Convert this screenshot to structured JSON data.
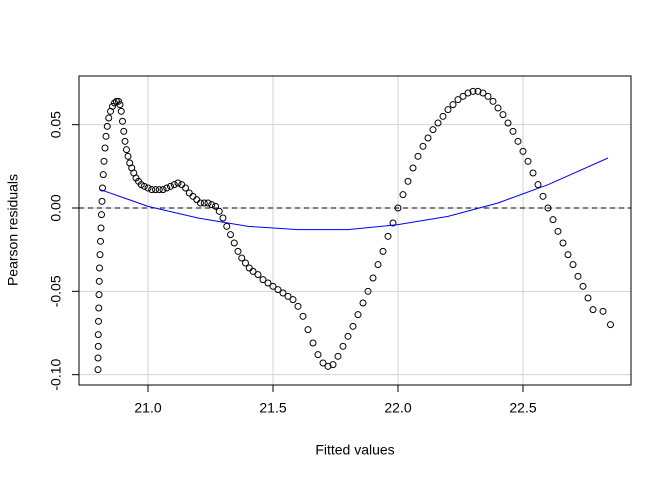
{
  "chart_data": {
    "type": "scatter",
    "xlabel": "Fitted values",
    "ylabel": "Pearson residuals",
    "xlim": [
      20.724,
      22.932
    ],
    "ylim": [
      -0.1062,
      0.0792
    ],
    "xticks": [
      {
        "value": 21,
        "label": "21.0"
      },
      21.5,
      {
        "value": 22,
        "label": "22.0"
      },
      22.5
    ],
    "yticks": [
      {
        "value": -0.1,
        "label": "-0.10"
      },
      -0.05,
      {
        "value": 0,
        "label": "0.00"
      },
      0.05
    ],
    "grid": true,
    "point_color": "#000000",
    "reference_line": 0,
    "x": [
      20.8,
      20.8,
      20.801,
      20.801,
      20.802,
      20.803,
      20.804,
      20.805,
      20.806,
      20.808,
      20.81,
      20.812,
      20.814,
      20.816,
      20.818,
      20.821,
      20.824,
      20.828,
      20.832,
      20.837,
      20.843,
      20.85,
      20.858,
      20.866,
      20.874,
      20.882,
      20.888,
      20.893,
      20.898,
      20.903,
      20.908,
      20.914,
      20.92,
      20.927,
      20.935,
      20.943,
      20.952,
      20.962,
      20.973,
      20.985,
      21.0,
      21.015,
      21.03,
      21.045,
      21.06,
      21.075,
      21.09,
      21.105,
      21.12,
      21.135,
      21.15,
      21.165,
      21.18,
      21.195,
      21.21,
      21.225,
      21.24,
      21.255,
      21.27,
      21.285,
      21.3,
      21.315,
      21.33,
      21.345,
      21.36,
      21.375,
      21.39,
      21.405,
      21.42,
      21.44,
      21.46,
      21.48,
      21.5,
      21.52,
      21.54,
      21.56,
      21.58,
      21.6,
      21.62,
      21.64,
      21.66,
      21.68,
      21.7,
      21.72,
      21.74,
      21.76,
      21.78,
      21.8,
      21.82,
      21.84,
      21.86,
      21.88,
      21.9,
      21.92,
      21.94,
      21.96,
      21.98,
      22.0,
      22.02,
      22.04,
      22.06,
      22.08,
      22.1,
      22.12,
      22.14,
      22.16,
      22.18,
      22.2,
      22.22,
      22.24,
      22.26,
      22.28,
      22.3,
      22.32,
      22.34,
      22.36,
      22.38,
      22.4,
      22.42,
      22.44,
      22.46,
      22.48,
      22.5,
      22.52,
      22.54,
      22.56,
      22.58,
      22.6,
      22.62,
      22.64,
      22.66,
      22.68,
      22.7,
      22.72,
      22.74,
      22.76,
      22.78,
      22.82,
      22.85
    ],
    "values": [
      -0.097,
      -0.09,
      -0.083,
      -0.076,
      -0.068,
      -0.06,
      -0.052,
      -0.044,
      -0.036,
      -0.028,
      -0.02,
      -0.012,
      -0.004,
      0.004,
      0.012,
      0.02,
      0.028,
      0.036,
      0.043,
      0.049,
      0.054,
      0.058,
      0.061,
      0.063,
      0.064,
      0.064,
      0.062,
      0.058,
      0.052,
      0.046,
      0.04,
      0.035,
      0.031,
      0.027,
      0.024,
      0.021,
      0.018,
      0.016,
      0.014,
      0.013,
      0.012,
      0.011,
      0.011,
      0.011,
      0.011,
      0.012,
      0.013,
      0.014,
      0.015,
      0.014,
      0.012,
      0.009,
      0.007,
      0.005,
      0.003,
      0.003,
      0.003,
      0.002,
      0.001,
      -0.002,
      -0.006,
      -0.011,
      -0.016,
      -0.021,
      -0.026,
      -0.03,
      -0.033,
      -0.036,
      -0.038,
      -0.04,
      -0.043,
      -0.045,
      -0.047,
      -0.049,
      -0.051,
      -0.053,
      -0.055,
      -0.059,
      -0.065,
      -0.073,
      -0.081,
      -0.088,
      -0.093,
      -0.095,
      -0.094,
      -0.089,
      -0.083,
      -0.077,
      -0.071,
      -0.064,
      -0.057,
      -0.05,
      -0.042,
      -0.034,
      -0.026,
      -0.017,
      -0.009,
      0.0,
      0.008,
      0.016,
      0.024,
      0.031,
      0.037,
      0.042,
      0.047,
      0.051,
      0.055,
      0.059,
      0.062,
      0.065,
      0.067,
      0.069,
      0.07,
      0.07,
      0.069,
      0.067,
      0.064,
      0.06,
      0.056,
      0.051,
      0.046,
      0.04,
      0.034,
      0.028,
      0.021,
      0.014,
      0.007,
      0.0,
      -0.007,
      -0.014,
      -0.021,
      -0.028,
      -0.034,
      -0.041,
      -0.047,
      -0.054,
      -0.061,
      -0.062,
      -0.07
    ],
    "smooth": {
      "color": "#0000ff",
      "x": [
        20.81,
        21.0,
        21.2,
        21.4,
        21.6,
        21.8,
        22.0,
        22.2,
        22.4,
        22.6,
        22.84
      ],
      "values": [
        0.011,
        0.001,
        -0.006,
        -0.011,
        -0.013,
        -0.013,
        -0.01,
        -0.005,
        0.003,
        0.014,
        0.03
      ]
    }
  }
}
